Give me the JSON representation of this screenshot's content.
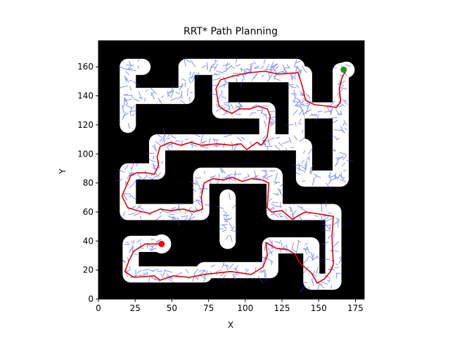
{
  "chart_data": {
    "type": "line",
    "title": "RRT* Path Planning",
    "xlabel": "X",
    "ylabel": "Y",
    "xlim": [
      0,
      181
    ],
    "ylim": [
      0,
      178
    ],
    "xticks": [
      0,
      25,
      50,
      75,
      100,
      125,
      150,
      175
    ],
    "yticks": [
      0,
      20,
      40,
      60,
      80,
      100,
      120,
      140,
      160
    ],
    "grid": false,
    "colors": {
      "background": "#000000",
      "free_space": "#ffffff",
      "tree": "#3344ee",
      "path": "#e00000",
      "start": "#ff0000",
      "goal": "#1a9a1a"
    },
    "start": [
      43,
      38
    ],
    "goal": [
      167,
      158
    ],
    "corridors": [
      [
        [
          43,
          38
        ],
        [
          22,
          38
        ],
        [
          22,
          17
        ],
        [
          72,
          17
        ],
        [
          72,
          20
        ],
        [
          117,
          20
        ],
        [
          117,
          37
        ],
        [
          145,
          37
        ],
        [
          145,
          12
        ],
        [
          160,
          12
        ],
        [
          160,
          60
        ],
        [
          120,
          60
        ],
        [
          120,
          85
        ],
        [
          70,
          85
        ],
        [
          70,
          60
        ],
        [
          20,
          60
        ],
        [
          20,
          88
        ],
        [
          40,
          88
        ],
        [
          40,
          108
        ],
        [
          135,
          108
        ],
        [
          135,
          155
        ],
        [
          83,
          155
        ],
        [
          83,
          130
        ],
        [
          115,
          130
        ],
        [
          115,
          110
        ]
      ],
      [
        [
          88,
          40
        ],
        [
          88,
          70
        ]
      ],
      [
        [
          20,
          160
        ],
        [
          20,
          120
        ]
      ],
      [
        [
          20,
          160
        ],
        [
          30,
          160
        ]
      ],
      [
        [
          20,
          140
        ],
        [
          60,
          140
        ]
      ],
      [
        [
          60,
          160
        ],
        [
          60,
          140
        ]
      ],
      [
        [
          60,
          160
        ],
        [
          135,
          160
        ]
      ],
      [
        [
          140,
          155
        ],
        [
          140,
          130
        ],
        [
          165,
          130
        ],
        [
          165,
          157
        ]
      ],
      [
        [
          165,
          157
        ],
        [
          169,
          158
        ]
      ],
      [
        [
          140,
          105
        ],
        [
          140,
          83
        ],
        [
          165,
          83
        ],
        [
          165,
          130
        ]
      ]
    ],
    "path": [
      [
        43,
        38
      ],
      [
        32,
        38
      ],
      [
        24,
        33
      ],
      [
        21,
        27
      ],
      [
        18,
        19
      ],
      [
        24,
        15
      ],
      [
        38,
        16
      ],
      [
        42,
        13
      ],
      [
        51,
        16
      ],
      [
        62,
        15
      ],
      [
        72,
        17
      ],
      [
        90,
        19
      ],
      [
        104,
        17
      ],
      [
        112,
        22
      ],
      [
        115,
        30
      ],
      [
        114,
        39
      ],
      [
        121,
        35
      ],
      [
        129,
        34
      ],
      [
        134,
        31
      ],
      [
        137,
        25
      ],
      [
        145,
        18
      ],
      [
        149,
        11
      ],
      [
        154,
        14
      ],
      [
        158,
        19
      ],
      [
        160,
        24
      ],
      [
        159,
        43
      ],
      [
        160,
        57
      ],
      [
        154,
        58
      ],
      [
        148,
        59
      ],
      [
        141,
        60
      ],
      [
        137,
        58
      ],
      [
        132,
        55
      ],
      [
        125,
        61
      ],
      [
        118,
        60
      ],
      [
        115,
        63
      ],
      [
        116,
        80
      ],
      [
        112,
        82
      ],
      [
        104,
        83
      ],
      [
        98,
        81
      ],
      [
        91,
        84
      ],
      [
        85,
        82
      ],
      [
        78,
        83
      ],
      [
        72,
        80
      ],
      [
        70,
        70
      ],
      [
        71,
        62
      ],
      [
        65,
        60
      ],
      [
        58,
        62
      ],
      [
        49,
        61
      ],
      [
        42,
        62
      ],
      [
        35,
        59
      ],
      [
        26,
        61
      ],
      [
        20,
        63
      ],
      [
        16,
        71
      ],
      [
        19,
        78
      ],
      [
        22,
        85
      ],
      [
        26,
        87
      ],
      [
        33,
        87
      ],
      [
        38,
        86
      ],
      [
        41,
        92
      ],
      [
        40,
        98
      ],
      [
        42,
        105
      ],
      [
        49,
        108
      ],
      [
        56,
        106
      ],
      [
        63,
        108
      ],
      [
        70,
        106
      ],
      [
        81,
        107
      ],
      [
        91,
        106
      ],
      [
        97,
        107
      ],
      [
        101,
        103
      ],
      [
        108,
        108
      ],
      [
        111,
        106
      ],
      [
        113,
        109
      ],
      [
        115,
        112
      ],
      [
        116,
        120
      ],
      [
        117,
        126
      ],
      [
        115,
        131
      ],
      [
        109,
        133
      ],
      [
        103,
        131
      ],
      [
        96,
        131
      ],
      [
        91,
        128
      ],
      [
        86,
        130
      ],
      [
        82,
        133
      ],
      [
        80,
        145
      ],
      [
        83,
        151
      ],
      [
        93,
        154
      ],
      [
        103,
        156
      ],
      [
        113,
        157
      ],
      [
        123,
        155
      ],
      [
        136,
        156
      ],
      [
        139,
        146
      ],
      [
        141,
        137
      ],
      [
        147,
        134
      ],
      [
        155,
        133
      ],
      [
        162,
        132
      ],
      [
        165,
        136
      ],
      [
        164,
        145
      ],
      [
        166,
        153
      ],
      [
        169,
        158
      ]
    ]
  }
}
